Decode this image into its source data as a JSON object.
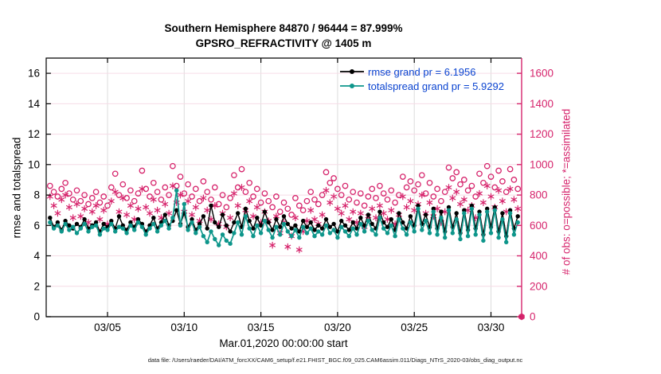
{
  "figure": {
    "title_line1": "Southern Hemisphere 84870 / 96444 = 87.999%",
    "title_line2": "GPSRO_REFRACTIVITY @ 1405 m",
    "xlabel": "Mar.01,2020 00:00:00 start",
    "ylabel_left": "rmse and totalspread",
    "ylabel_right": "# of obs: o=possible; *=assimilated",
    "footer": "data file: /Users/raeder/DAI/ATM_forcXX/CAM6_setup/f.e21.FHIST_BGC.f09_025.CAM6assim.011/Diags_NTrS_2020-03/obs_diag_output.nc"
  },
  "colors": {
    "rmse": "#000000",
    "totalspread": "#0E968B",
    "obs_pink": "#D6246C",
    "grid_pink": "#F6DCE6",
    "grid_gray": "#DCDCDC",
    "legend_text": "#0A43D0",
    "axis_black": "#000000"
  },
  "legend": {
    "entries": [
      {
        "label": "rmse grand pr = 6.1956",
        "series": "rmse"
      },
      {
        "label": "totalspread grand pr = 5.9292",
        "series": "totalspread"
      }
    ]
  },
  "chart_data": {
    "type": "line",
    "title": "Southern Hemisphere 84870 / 96444 = 87.999% | GPSRO_REFRACTIVITY @ 1405 m",
    "xlabel": "Mar.01,2020 00:00:00 start",
    "ylabel_left": "rmse and totalspread",
    "ylabel_right": "# of obs: o=possible; *=assimilated",
    "xlim_days": [
      0,
      31
    ],
    "ylim_left": [
      0,
      17
    ],
    "ylim_right": [
      0,
      1700
    ],
    "grid": true,
    "legend_position": "top-right-inside",
    "x_ticks": {
      "days": [
        4,
        9,
        14,
        19,
        24,
        29
      ],
      "labels": [
        "03/05",
        "03/10",
        "03/15",
        "03/20",
        "03/25",
        "03/30"
      ]
    },
    "y_left_ticks": [
      0,
      2,
      4,
      6,
      8,
      10,
      12,
      14,
      16
    ],
    "y_right_ticks": [
      0,
      200,
      400,
      600,
      800,
      1000,
      1200,
      1400,
      1600
    ],
    "x_start_day": 0.25,
    "x_step_day": 0.25,
    "series": [
      {
        "name": "rmse",
        "grand_pr": 6.1956,
        "axis": "left",
        "values": [
          6.5,
          5.9,
          6.2,
          5.7,
          6.3,
          6.0,
          5.8,
          6.1,
          5.9,
          6.4,
          5.8,
          6.0,
          6.2,
          5.6,
          6.1,
          5.9,
          6.3,
          5.8,
          6.6,
          6.0,
          5.7,
          6.2,
          5.9,
          6.4,
          6.1,
          5.6,
          6.0,
          6.5,
          5.8,
          6.2,
          6.7,
          6.0,
          6.3,
          7.0,
          6.1,
          6.8,
          5.9,
          6.4,
          5.7,
          6.1,
          6.6,
          5.8,
          7.3,
          6.2,
          5.9,
          6.7,
          6.0,
          5.6,
          6.2,
          6.8,
          5.9,
          7.1,
          6.3,
          5.8,
          6.5,
          6.0,
          6.9,
          6.2,
          5.7,
          6.4,
          5.9,
          6.6,
          6.1,
          5.8,
          6.0,
          5.6,
          6.3,
          5.9,
          6.2,
          5.7,
          6.0,
          5.8,
          6.4,
          5.9,
          6.1,
          5.6,
          6.3,
          6.0,
          5.7,
          6.2,
          5.8,
          6.5,
          6.0,
          6.7,
          6.1,
          5.8,
          6.9,
          6.2,
          5.9,
          6.4,
          5.7,
          6.8,
          6.2,
          5.8,
          6.6,
          6.0,
          7.3,
          6.1,
          6.7,
          5.9,
          7.1,
          5.8,
          6.9,
          5.6,
          7.2,
          5.9,
          6.8,
          5.5,
          7.0,
          5.7,
          7.3,
          5.8,
          6.9,
          5.4,
          7.1,
          5.9,
          7.2,
          5.6,
          6.8,
          5.3,
          7.0,
          5.8,
          6.6
        ]
      },
      {
        "name": "totalspread",
        "grand_pr": 5.9292,
        "axis": "left",
        "values": [
          6.2,
          5.8,
          6.0,
          5.6,
          6.1,
          5.7,
          5.9,
          5.5,
          5.8,
          6.1,
          5.6,
          5.9,
          6.0,
          5.4,
          5.8,
          5.7,
          6.1,
          5.6,
          5.9,
          5.8,
          5.5,
          6.0,
          5.7,
          6.2,
          5.9,
          5.4,
          5.8,
          6.1,
          5.6,
          6.0,
          6.3,
          5.8,
          6.5,
          8.3,
          6.0,
          7.4,
          5.7,
          6.2,
          5.5,
          5.9,
          5.3,
          4.9,
          5.6,
          5.1,
          4.7,
          5.4,
          5.0,
          4.8,
          5.5,
          6.2,
          5.4,
          6.6,
          5.8,
          5.3,
          6.0,
          5.5,
          6.3,
          5.7,
          5.2,
          5.9,
          5.4,
          6.1,
          5.6,
          5.3,
          5.7,
          5.2,
          5.9,
          5.5,
          5.8,
          5.3,
          5.6,
          5.4,
          6.0,
          5.5,
          5.7,
          5.2,
          5.9,
          5.6,
          5.3,
          5.8,
          5.4,
          6.1,
          5.6,
          6.3,
          5.7,
          5.4,
          6.5,
          5.8,
          5.5,
          6.0,
          5.3,
          6.4,
          5.8,
          5.4,
          6.2,
          5.6,
          7.1,
          5.7,
          6.3,
          5.5,
          6.9,
          5.4,
          6.5,
          5.2,
          7.0,
          5.5,
          6.4,
          5.1,
          6.8,
          5.3,
          7.1,
          5.4,
          6.7,
          5.0,
          6.9,
          5.5,
          7.0,
          5.2,
          6.4,
          4.9,
          6.8,
          5.4,
          6.2
        ]
      }
    ],
    "scatter": [
      {
        "name": "possible",
        "marker": "circle",
        "axis": "right",
        "values": [
          860,
          820,
          790,
          840,
          880,
          810,
          770,
          830,
          760,
          800,
          740,
          780,
          820,
          750,
          790,
          730,
          850,
          940,
          800,
          870,
          780,
          830,
          760,
          810,
          960,
          840,
          790,
          880,
          820,
          770,
          850,
          800,
          990,
          860,
          920,
          810,
          870,
          790,
          840,
          760,
          890,
          820,
          770,
          850,
          740,
          800,
          720,
          780,
          930,
          850,
          970,
          820,
          880,
          790,
          840,
          750,
          810,
          760,
          720,
          790,
          690,
          750,
          710,
          670,
          780,
          730,
          700,
          760,
          820,
          770,
          740,
          800,
          950,
          880,
          910,
          840,
          800,
          860,
          770,
          820,
          750,
          810,
          730,
          790,
          840,
          780,
          860,
          810,
          770,
          830,
          750,
          800,
          920,
          850,
          890,
          830,
          870,
          930,
          810,
          880,
          790,
          840,
          760,
          820,
          980,
          910,
          950,
          870,
          900,
          830,
          860,
          790,
          940,
          880,
          990,
          920,
          850,
          960,
          890,
          820,
          970,
          900,
          840
        ]
      },
      {
        "name": "assimilated",
        "marker": "asterisk",
        "axis": "right",
        "values": [
          790,
          730,
          680,
          770,
          800,
          720,
          650,
          740,
          660,
          710,
          620,
          690,
          730,
          640,
          700,
          610,
          760,
          820,
          690,
          780,
          670,
          730,
          640,
          710,
          840,
          720,
          680,
          770,
          700,
          650,
          740,
          680,
          860,
          750,
          800,
          690,
          760,
          670,
          720,
          630,
          780,
          700,
          640,
          730,
          610,
          680,
          590,
          650,
          810,
          730,
          850,
          700,
          760,
          660,
          720,
          620,
          690,
          630,
          470,
          660,
          550,
          620,
          460,
          530,
          650,
          440,
          560,
          630,
          700,
          640,
          610,
          670,
          830,
          750,
          790,
          710,
          680,
          730,
          640,
          690,
          620,
          680,
          590,
          660,
          710,
          650,
          730,
          680,
          640,
          700,
          610,
          670,
          790,
          720,
          760,
          700,
          740,
          800,
          680,
          750,
          660,
          710,
          620,
          690,
          850,
          780,
          820,
          740,
          770,
          700,
          730,
          650,
          810,
          750,
          860,
          790,
          720,
          830,
          760,
          690,
          840,
          770,
          710
        ]
      }
    ],
    "final_obs_point": {
      "day": 31,
      "possible": 0,
      "assimilated": 0
    }
  }
}
